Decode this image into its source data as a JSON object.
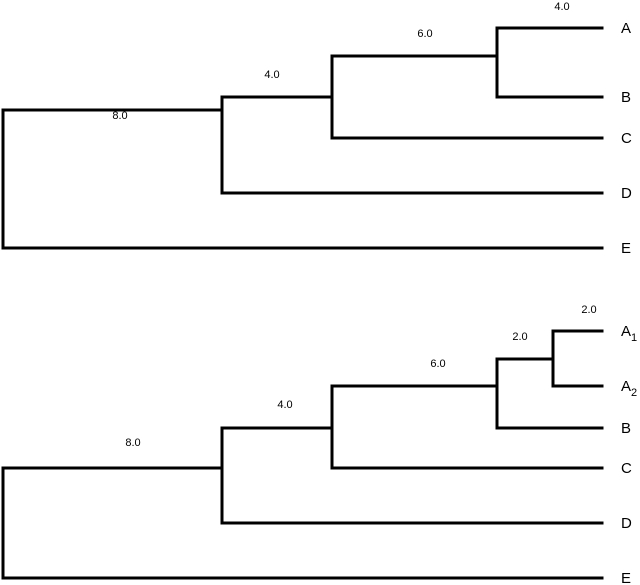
{
  "trees": [
    {
      "leaves": [
        {
          "base": "A",
          "sub": ""
        },
        {
          "base": "B",
          "sub": ""
        },
        {
          "base": "C",
          "sub": ""
        },
        {
          "base": "D",
          "sub": ""
        },
        {
          "base": "E",
          "sub": ""
        }
      ],
      "branch_lengths": [
        "8.0",
        "4.0",
        "6.0",
        "4.0"
      ]
    },
    {
      "leaves": [
        {
          "base": "A",
          "sub": "1"
        },
        {
          "base": "A",
          "sub": "2"
        },
        {
          "base": "B",
          "sub": ""
        },
        {
          "base": "C",
          "sub": ""
        },
        {
          "base": "D",
          "sub": ""
        },
        {
          "base": "E",
          "sub": ""
        }
      ],
      "branch_lengths": [
        "8.0",
        "4.0",
        "6.0",
        "2.0",
        "2.0"
      ]
    }
  ]
}
